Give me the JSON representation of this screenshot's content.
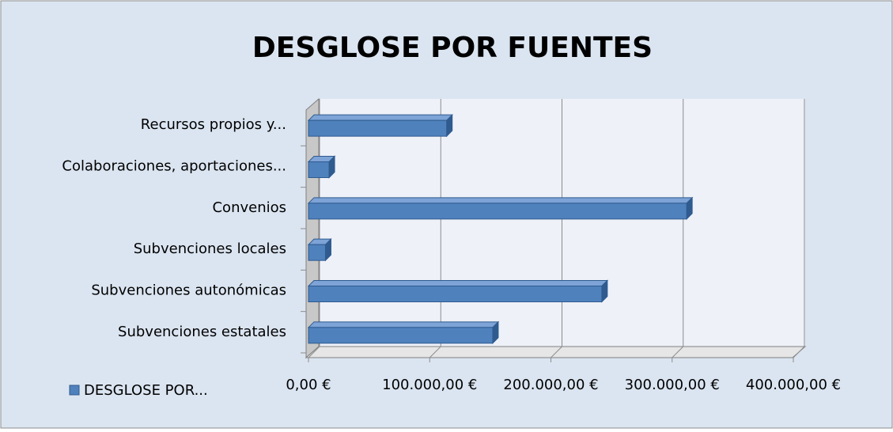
{
  "chart_data": {
    "type": "bar",
    "orientation": "horizontal",
    "title": "DESGLOSE POR FUENTES",
    "categories": [
      "Subvenciones estatales",
      "Subvenciones autonómicas",
      "Subvenciones locales",
      "Convenios",
      "Colaboraciones, aportaciones...",
      "Recursos propios y..."
    ],
    "series": [
      {
        "name": "DESGLOSE POR...",
        "color": "#4f81bd",
        "values": [
          152000,
          242000,
          14000,
          312000,
          17000,
          114000
        ]
      }
    ],
    "xlim": [
      0,
      400000
    ],
    "xticks": [
      {
        "value": 0,
        "label": "0,00 €"
      },
      {
        "value": 100000,
        "label": "100.000,00 €"
      },
      {
        "value": 200000,
        "label": "200.000,00 €"
      },
      {
        "value": 300000,
        "label": "300.000,00 €"
      },
      {
        "value": 400000,
        "label": "400.000,00 €"
      }
    ],
    "grid": true,
    "legend": "bottom-left"
  }
}
